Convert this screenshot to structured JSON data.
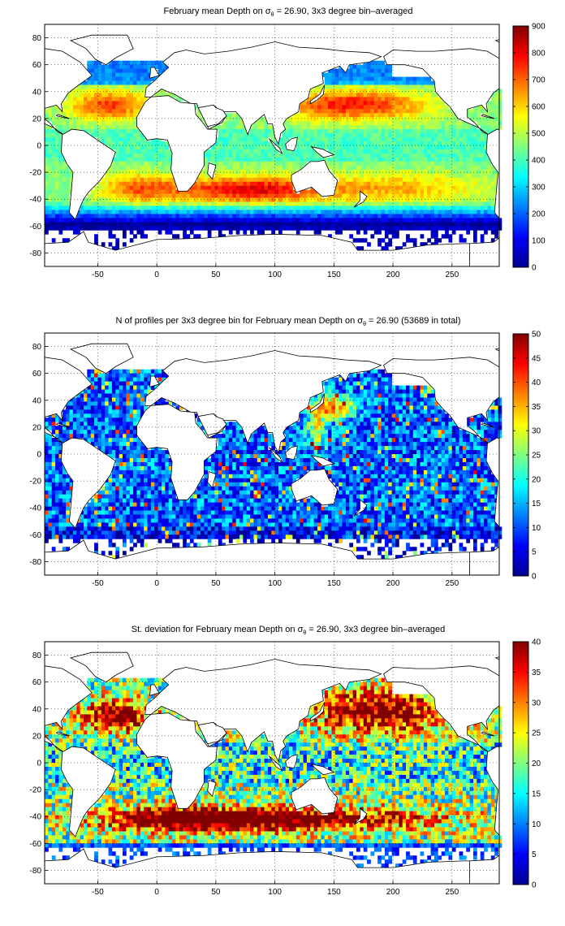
{
  "figure": {
    "colormap": "jet",
    "colormap_stops": [
      "#00008f",
      "#0000ff",
      "#00ffff",
      "#ffff00",
      "#ff0000",
      "#800000"
    ],
    "land_color": "#ffffff",
    "missing_color": "#ffffff",
    "coastline_color": "#000000",
    "grid": true,
    "grid_style": "dotted"
  },
  "chart_data": [
    {
      "type": "heatmap",
      "title_parts": [
        "February mean Depth on ",
        "σ",
        "θ",
        " = 26.90, 3x3 degree bin–averaged"
      ],
      "xlim": [
        -95,
        290
      ],
      "ylim": [
        -90,
        90
      ],
      "x_ticks": [
        "-50",
        "0",
        "50",
        "100",
        "150",
        "200",
        "250"
      ],
      "x_tick_values": [
        -50,
        0,
        50,
        100,
        150,
        200,
        250
      ],
      "y_ticks": [
        "80",
        "60",
        "40",
        "20",
        "0",
        "-20",
        "-40",
        "-60",
        "-80"
      ],
      "y_tick_values": [
        80,
        60,
        40,
        20,
        0,
        -20,
        -40,
        -60,
        -80
      ],
      "colorbar": {
        "range": [
          0,
          900
        ],
        "ticks": [
          "900",
          "800",
          "700",
          "600",
          "500",
          "400",
          "300",
          "200",
          "100",
          "0"
        ],
        "tick_values": [
          900,
          800,
          700,
          600,
          500,
          400,
          300,
          200,
          100,
          0
        ]
      },
      "bin_size_deg": 3,
      "field": "depth",
      "representative_values": [
        {
          "region": "north-atlantic-subtropical",
          "lon": -40,
          "lat": 30,
          "value": 720
        },
        {
          "region": "north-pacific-subtropical",
          "lon": 170,
          "lat": 30,
          "value": 760
        },
        {
          "region": "south-indian-subtropical",
          "lon": 70,
          "lat": -35,
          "value": 800
        },
        {
          "region": "equatorial-band",
          "lon": 200,
          "lat": 0,
          "value": 450
        },
        {
          "region": "southern-ocean",
          "lon": 100,
          "lat": -55,
          "value": 150
        },
        {
          "region": "antarctic-shelf",
          "lon": 100,
          "lat": -68,
          "value": 40
        }
      ]
    },
    {
      "type": "heatmap",
      "title_parts": [
        "N of profiles per 3x3 degree bin for February mean Depth on ",
        "σ",
        "θ",
        " = 26.90 (53689 in total)"
      ],
      "total_profiles": 53689,
      "xlim": [
        -95,
        290
      ],
      "ylim": [
        -90,
        90
      ],
      "x_ticks": [
        "-50",
        "0",
        "50",
        "100",
        "150",
        "200",
        "250"
      ],
      "x_tick_values": [
        -50,
        0,
        50,
        100,
        150,
        200,
        250
      ],
      "y_ticks": [
        "80",
        "60",
        "40",
        "20",
        "0",
        "-20",
        "-40",
        "-60",
        "-80"
      ],
      "y_tick_values": [
        80,
        60,
        40,
        20,
        0,
        -20,
        -40,
        -60,
        -80
      ],
      "colorbar": {
        "range": [
          0,
          50
        ],
        "ticks": [
          "50",
          "45",
          "40",
          "35",
          "30",
          "25",
          "20",
          "15",
          "10",
          "5",
          "0"
        ],
        "tick_values": [
          50,
          45,
          40,
          35,
          30,
          25,
          20,
          15,
          10,
          5,
          0
        ]
      },
      "bin_size_deg": 3,
      "field": "count",
      "representative_values": [
        {
          "region": "kuroshio",
          "lon": 145,
          "lat": 35,
          "value": 48
        },
        {
          "region": "open-ocean-typical",
          "lon": 200,
          "lat": -10,
          "value": 15
        },
        {
          "region": "southern-ocean",
          "lon": 100,
          "lat": -55,
          "value": 8
        }
      ]
    },
    {
      "type": "heatmap",
      "title_parts": [
        "St. deviation for February mean Depth on ",
        "σ",
        "θ",
        " = 26.90, 3x3 degree bin–averaged"
      ],
      "xlim": [
        -95,
        290
      ],
      "ylim": [
        -90,
        90
      ],
      "x_ticks": [
        "-50",
        "0",
        "50",
        "100",
        "150",
        "200",
        "250"
      ],
      "x_tick_values": [
        -50,
        0,
        50,
        100,
        150,
        200,
        250
      ],
      "y_ticks": [
        "80",
        "60",
        "40",
        "20",
        "0",
        "-20",
        "-40",
        "-60",
        "-80"
      ],
      "y_tick_values": [
        80,
        60,
        40,
        20,
        0,
        -20,
        -40,
        -60,
        -80
      ],
      "colorbar": {
        "range": [
          0,
          40
        ],
        "ticks": [
          "40",
          "35",
          "30",
          "25",
          "20",
          "15",
          "10",
          "5",
          "0"
        ],
        "tick_values": [
          40,
          35,
          30,
          25,
          20,
          15,
          10,
          5,
          0
        ]
      },
      "bin_size_deg": 3,
      "field": "stdev",
      "representative_values": [
        {
          "region": "north-atlantic-subtropical",
          "lon": -40,
          "lat": 35,
          "value": 40
        },
        {
          "region": "north-pacific-subtropical",
          "lon": 190,
          "lat": 40,
          "value": 38
        },
        {
          "region": "acc-band",
          "lon": 80,
          "lat": -40,
          "value": 40
        },
        {
          "region": "equatorial-pacific",
          "lon": 220,
          "lat": 0,
          "value": 22
        }
      ]
    }
  ]
}
